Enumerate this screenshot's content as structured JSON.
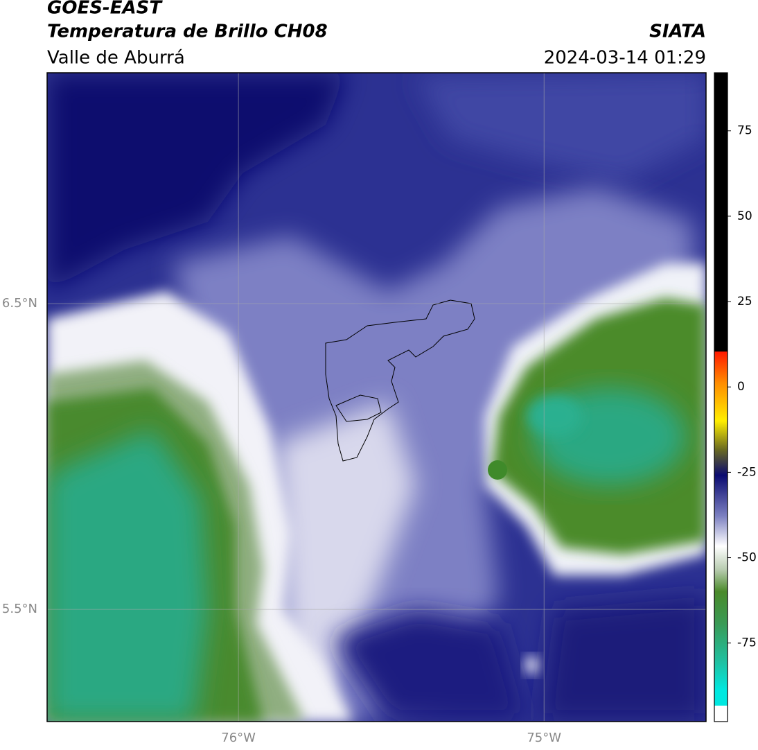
{
  "header": {
    "title": "GOES-EAST",
    "subtitle": "Temperatura de Brillo CH08",
    "region": "Valle de Aburrá",
    "source": "SIATA",
    "datetime": "2024-03-14 01:29"
  },
  "chart_data": {
    "type": "map",
    "xlim": [
      -76.626,
      -74.47
    ],
    "ylim": [
      5.133,
      7.255
    ],
    "xticks": [
      {
        "value": -76,
        "label": "76°W"
      },
      {
        "value": -75,
        "label": "75°W"
      }
    ],
    "yticks": [
      {
        "value": 6.5,
        "label": "6.5°N"
      },
      {
        "value": 5.5,
        "label": "5.5°N"
      }
    ],
    "grid": true,
    "colorbar": {
      "clim": [
        -98,
        92
      ],
      "ticks": [
        75,
        50,
        25,
        0,
        -25,
        -50,
        -75
      ]
    }
  }
}
